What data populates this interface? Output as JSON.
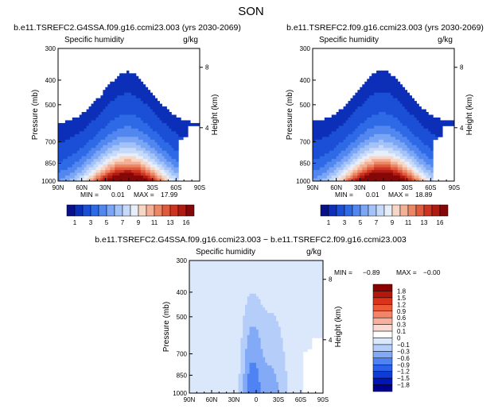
{
  "page_title": "SON",
  "chart_data": [
    {
      "type": "heatmap",
      "title": "b.e11.TSREFC2.G4SSA.f09.g16.ccmi23.003 (yrs 2030-2069)",
      "subtitle_left": "Specific humidity",
      "subtitle_right": "g/kg",
      "ylabel": "Pressure (mb)",
      "ylabel_right": "Height (km)",
      "x_ticks": [
        "90N",
        "60N",
        "30N",
        "0",
        "30S",
        "60S",
        "90S"
      ],
      "y_ticks": [
        "300",
        "400",
        "500",
        "700",
        "850",
        "1000"
      ],
      "y_ticks_right": [
        "8",
        "4"
      ],
      "min_label": "MIN =",
      "min_value": "0.01",
      "max_label": "MAX =",
      "max_value": "17.99",
      "colorbar_labels": [
        "1",
        "3",
        "5",
        "7",
        "9",
        "11",
        "13",
        "16"
      ],
      "contour_levels": [
        0.5,
        1,
        2,
        3,
        4,
        5,
        6,
        7,
        8,
        9,
        10,
        11,
        12,
        13,
        14,
        16
      ],
      "field": {
        "peak": 18.0,
        "surface_limit_north_deg": 62
      }
    },
    {
      "type": "heatmap",
      "title": "b.e11.TSREFC2.f09.g16.ccmi23.003 (yrs 2030-2069)",
      "subtitle_left": "Specific humidity",
      "subtitle_right": "g/kg",
      "ylabel": "Pressure (mb)",
      "ylabel_right": "Height (km)",
      "x_ticks": [
        "90N",
        "60N",
        "30N",
        "0",
        "30S",
        "60S",
        "90S"
      ],
      "y_ticks": [
        "300",
        "400",
        "500",
        "700",
        "850",
        "1000"
      ],
      "y_ticks_right": [
        "8",
        "4"
      ],
      "min_label": "MIN =",
      "min_value": "0.01",
      "max_label": "MAX =",
      "max_value": "18.89",
      "colorbar_labels": [
        "1",
        "3",
        "5",
        "7",
        "9",
        "11",
        "13",
        "16"
      ],
      "contour_levels": [
        0.5,
        1,
        2,
        3,
        4,
        5,
        6,
        7,
        8,
        9,
        10,
        11,
        12,
        13,
        14,
        16
      ],
      "field": {
        "peak": 18.9,
        "surface_limit_north_deg": 62
      }
    },
    {
      "type": "heatmap",
      "title": "b.e11.TSREFC2.G4SSA.f09.g16.ccmi23.003 − b.e11.TSREFC2.f09.g16.ccmi23.003",
      "subtitle_left": "Specific humidity",
      "subtitle_right": "g/kg",
      "ylabel": "Pressure (mb)",
      "ylabel_right": "Height (km)",
      "x_ticks": [
        "90N",
        "60N",
        "30N",
        "0",
        "30S",
        "60S",
        "90S"
      ],
      "y_ticks": [
        "300",
        "400",
        "500",
        "700",
        "850",
        "1000"
      ],
      "y_ticks_right": [
        "8",
        "4"
      ],
      "min_label": "MIN =",
      "min_value": "−0.89",
      "max_label": "MAX =",
      "max_value": "−0.00",
      "colorbar_labels": [
        "1.8",
        "1.5",
        "1.2",
        "0.9",
        "0.6",
        "0.3",
        "0.1",
        "0",
        "−0.1",
        "−0.3",
        "−0.6",
        "−0.9",
        "−1.2",
        "−1.5",
        "−1.8"
      ],
      "contour_levels": [
        -1.8,
        -1.5,
        -1.2,
        -0.9,
        -0.6,
        -0.3,
        -0.1,
        0,
        0.1,
        0.3,
        0.6,
        0.9,
        1.2,
        1.5,
        1.8
      ],
      "field": {
        "min": -0.89,
        "max": -0.0,
        "surface_limit_north_deg": 62
      }
    }
  ],
  "colors": {
    "seq": [
      "#08108a",
      "#0c2fb8",
      "#1a4fd6",
      "#2f6ae6",
      "#5287f0",
      "#7aa6f5",
      "#a3c2f8",
      "#c8dafa",
      "#e8eef8",
      "#f7d6c6",
      "#f3b096",
      "#ec8765",
      "#e05a3e",
      "#cc3320",
      "#b01a12",
      "#860707"
    ],
    "div": [
      "#00008f",
      "#0016b4",
      "#0d3dd5",
      "#2a60ea",
      "#4f83f3",
      "#83aaf6",
      "#b4cdf9",
      "#dbe8fc",
      "#ffffff",
      "#fbd9d0",
      "#f8b09c",
      "#f48468",
      "#ec5a38",
      "#d9341a",
      "#b4180d",
      "#8c0000"
    ]
  }
}
